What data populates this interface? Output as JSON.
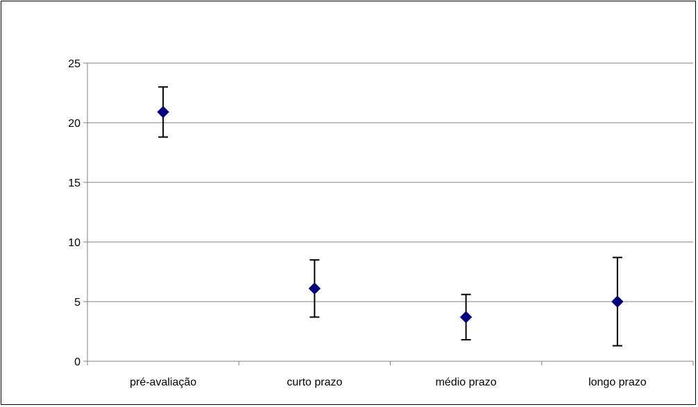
{
  "chart_data": {
    "type": "scatter",
    "categories": [
      "pré-avaliação",
      "curto prazo",
      "médio prazo",
      "longo prazo"
    ],
    "series": [
      {
        "values": [
          20.9,
          6.1,
          3.7,
          5.0
        ],
        "error_low": [
          18.8,
          3.7,
          1.8,
          1.3
        ],
        "error_high": [
          23.0,
          8.5,
          5.6,
          8.7
        ]
      }
    ],
    "ylim": [
      0,
      25
    ],
    "yticks": [
      0,
      5,
      10,
      15,
      20,
      25
    ],
    "ytick_labels": [
      "0",
      "5",
      "10",
      "15",
      "20",
      "25"
    ],
    "grid": true,
    "legend": "none",
    "marker": "diamond"
  },
  "colors": {
    "marker": "#00007f",
    "error_bar": "#000000",
    "grid": "#808080",
    "axis": "#808080"
  }
}
